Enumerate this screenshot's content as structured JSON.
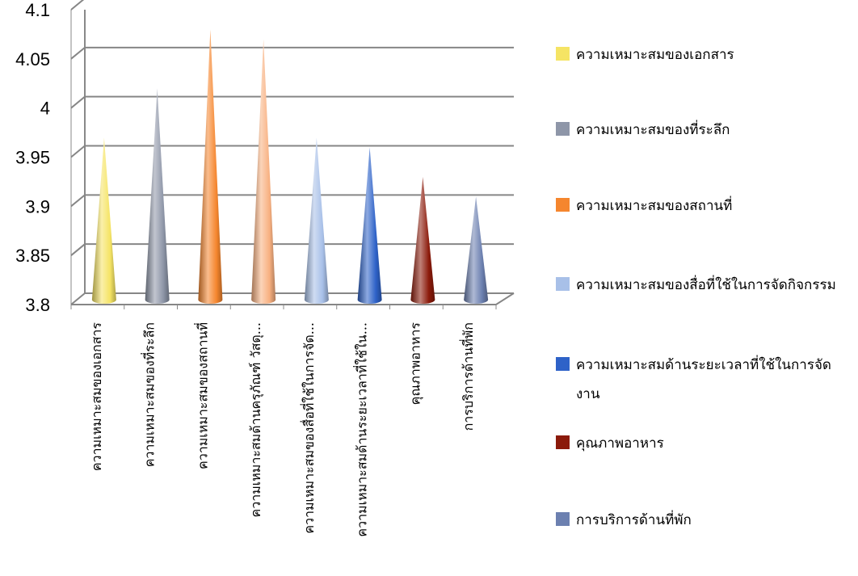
{
  "chart_data": {
    "type": "bar",
    "subtype": "3d-cone",
    "categories": [
      "ความเหมาะสมของเอกสาร",
      "ความเหมาะสมของที่ระลึก",
      "ความเหมาะสมของสถานที่",
      "ความเหมาะสมด้านครุภัณฑ์ วัสดุ...",
      "ความเหมาะสมของสื่อที่ใช้ในการจัด...",
      "ความเหมาะสมด้านระยะเวลาที่ใช้ใน...",
      "คุณภาพอาหาร",
      "การบริการด้านที่พัก"
    ],
    "values": [
      3.96,
      4.01,
      4.07,
      4.06,
      3.96,
      3.95,
      3.92,
      3.9
    ],
    "ylim": [
      3.8,
      4.1
    ],
    "yticks": [
      "3.8",
      "3.85",
      "3.9",
      "3.95",
      "4",
      "4.05",
      "4.1"
    ],
    "colors": [
      "#f5e464",
      "#8e96a8",
      "#f5862e",
      "#f8b080",
      "#a8c0e8",
      "#2e62c8",
      "#8b1a0a",
      "#6c80b0"
    ],
    "grid": true,
    "legend_position": "right",
    "legend": [
      "ความเหมาะสมของเอกสาร",
      "ความเหมาะสมของที่ระลึก",
      "ความเหมาะสมของสถานที่",
      "ความเหมาะสมของสื่อที่ใช้ในการจัดกิจกรรม",
      "ความเหมาะสมด้านระยะเวลาที่ใช้ในการจัดงาน",
      "คุณภาพอาหาร",
      "การบริการด้านที่พัก"
    ],
    "legend_colors": [
      "#f5e464",
      "#8e96a8",
      "#f5862e",
      "#a8c0e8",
      "#2e62c8",
      "#8b1a0a",
      "#6c80b0"
    ]
  }
}
